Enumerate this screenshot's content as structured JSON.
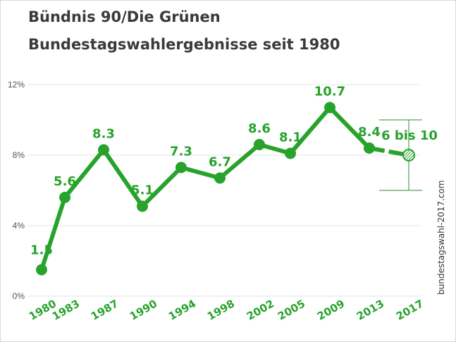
{
  "title_line1": "Bündnis 90/Die Grünen",
  "title_line2": "Bundestagswahlergebnisse seit 1980",
  "credit": "bundestagswahl-2017.com",
  "colors": {
    "line": "#27a32c",
    "label": "#27a32c",
    "axis_text": "#555555",
    "grid": "#e6e6e6",
    "range": "#2e8b32"
  },
  "chart_data": {
    "type": "line",
    "categories": [
      "1980",
      "1983",
      "1987",
      "1990",
      "1994",
      "1998",
      "2002",
      "2005",
      "2009",
      "2013",
      "2017"
    ],
    "values": [
      1.5,
      5.6,
      8.3,
      5.1,
      7.3,
      6.7,
      8.6,
      8.1,
      10.7,
      8.4,
      8
    ],
    "labels": [
      "1.5",
      "5.6",
      "8.3",
      "5.1",
      "7.3",
      "6.7",
      "8.6",
      "8.1",
      "10.7",
      "8.4",
      "6 bis 10"
    ],
    "projection": {
      "category": "2017",
      "range": [
        6,
        10
      ],
      "label": "6 bis 10"
    },
    "yticks": [
      "0%",
      "4%",
      "8%",
      "12%"
    ],
    "ylim": [
      0,
      12
    ],
    "grid": true,
    "legend": "none"
  }
}
